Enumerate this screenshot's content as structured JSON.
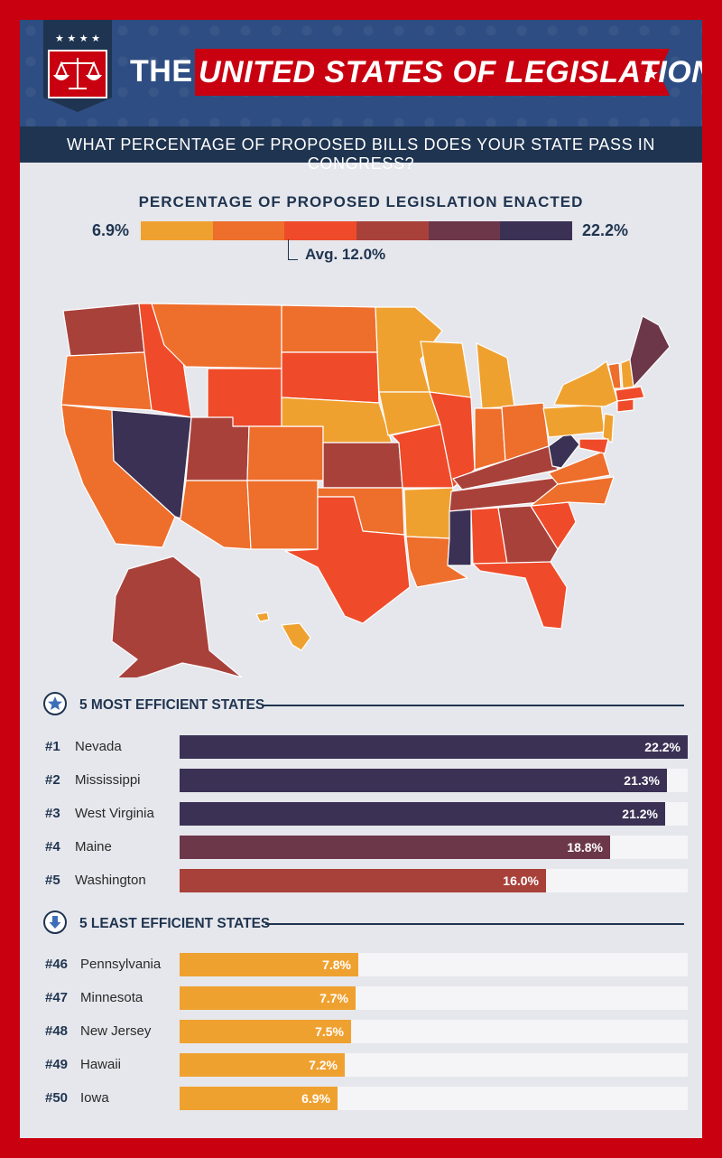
{
  "header": {
    "title_prefix": "THE",
    "title_main": "UNITED STATES OF LEGISLATION",
    "subtitle": "WHAT PERCENTAGE OF PROPOSED BILLS DOES YOUR STATE PASS IN CONGRESS?",
    "badge_stars": "★ ★ ★ ★"
  },
  "legend": {
    "title": "PERCENTAGE OF PROPOSED LEGISLATION ENACTED",
    "min_label": "6.9%",
    "max_label": "22.2%",
    "avg_label": "Avg. 12.0%",
    "scale_colors": [
      "#efa130",
      "#ee6e2c",
      "#ef4b2a",
      "#a9413b",
      "#6c3749",
      "#3a3154"
    ]
  },
  "colors": {
    "brand_red": "#c8000f",
    "navy": "#1f3450",
    "header_blue": "#2e4d82",
    "track": "#f5f5f7"
  },
  "chart_data": [
    {
      "type": "bar",
      "title": "5 MOST EFFICIENT STATES",
      "icon": "star-icon",
      "ranks": [
        "#1",
        "#2",
        "#3",
        "#4",
        "#5"
      ],
      "categories": [
        "Nevada",
        "Mississippi",
        "West Virginia",
        "Maine",
        "Washington"
      ],
      "values": [
        22.2,
        21.3,
        21.2,
        18.8,
        16.0
      ],
      "value_labels": [
        "22.2%",
        "21.3%",
        "21.2%",
        "18.8%",
        "16.0%"
      ],
      "bar_colors": [
        "#3a3154",
        "#3a3154",
        "#3a3154",
        "#6c3749",
        "#a9413b"
      ],
      "xlim": [
        0,
        22.2
      ]
    },
    {
      "type": "bar",
      "title": "5 LEAST EFFICIENT STATES",
      "icon": "down-arrow-icon",
      "ranks": [
        "#46",
        "#47",
        "#48",
        "#49",
        "#50"
      ],
      "categories": [
        "Pennsylvania",
        "Minnesota",
        "New Jersey",
        "Hawaii",
        "Iowa"
      ],
      "values": [
        7.8,
        7.7,
        7.5,
        7.2,
        6.9
      ],
      "value_labels": [
        "7.8%",
        "7.7%",
        "7.5%",
        "7.2%",
        "6.9%"
      ],
      "bar_colors": [
        "#efa130",
        "#efa130",
        "#efa130",
        "#efa130",
        "#efa130"
      ],
      "xlim": [
        0,
        22.2
      ]
    }
  ]
}
